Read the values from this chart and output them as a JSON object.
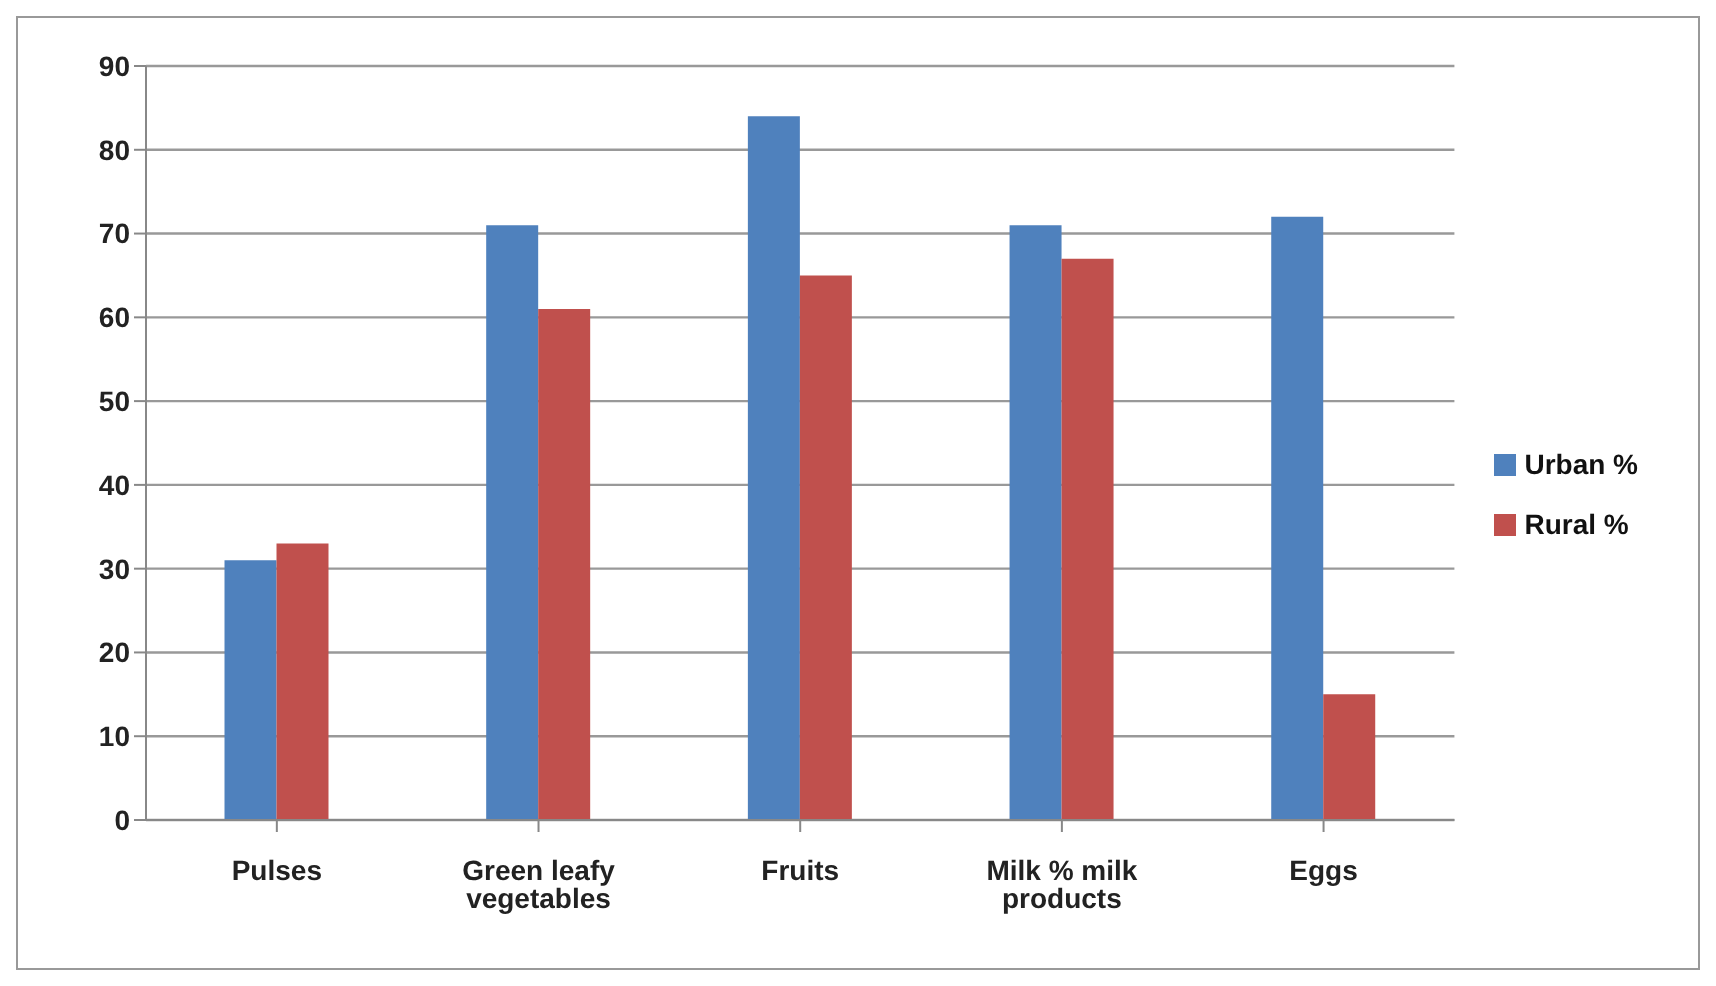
{
  "chart_data": {
    "type": "bar",
    "categories": [
      "Pulses",
      "Green leafy vegetables",
      "Fruits",
      "Milk % milk products",
      "Eggs"
    ],
    "series": [
      {
        "name": "Urban %",
        "color": "#4f81bd",
        "values": [
          31,
          71,
          84,
          71,
          72
        ]
      },
      {
        "name": "Rural %",
        "color": "#c0504d",
        "values": [
          33,
          61,
          65,
          67,
          15
        ]
      }
    ],
    "ylim": [
      0,
      90
    ],
    "yticks": [
      0,
      10,
      20,
      30,
      40,
      50,
      60,
      70,
      80,
      90
    ],
    "grid": "y",
    "legend": "right"
  }
}
